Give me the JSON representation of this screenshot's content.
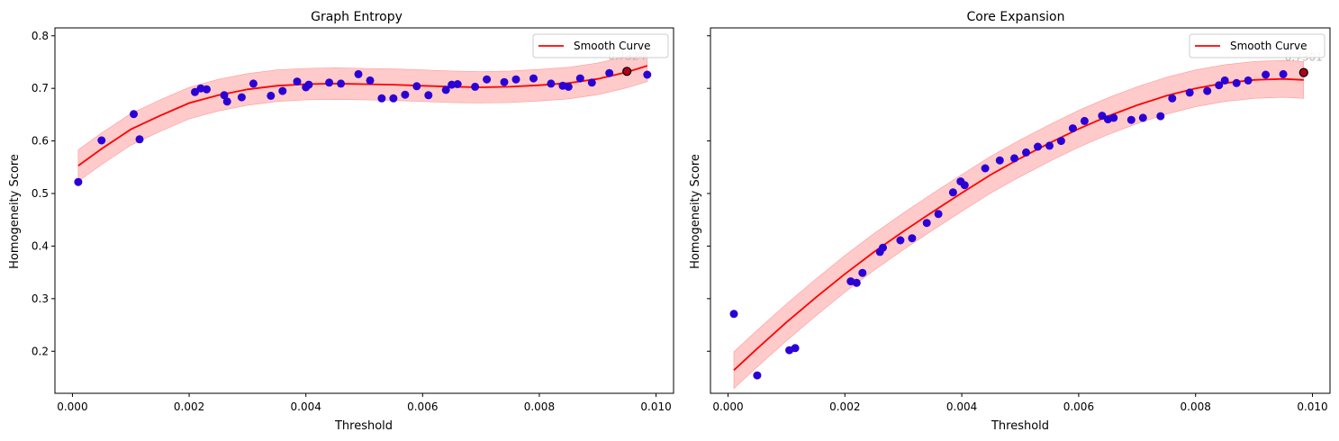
{
  "chart_data": [
    {
      "type": "scatter",
      "title": "Graph Entropy",
      "xlabel": "Threshold",
      "ylabel": "Homogeneity Score",
      "xlim": [
        -0.0003,
        0.0103
      ],
      "ylim": [
        0.12,
        0.815
      ],
      "xticks": [
        "0.000",
        "0.002",
        "0.004",
        "0.006",
        "0.008",
        "0.010"
      ],
      "xtick_values": [
        0.0,
        0.002,
        0.004,
        0.006,
        0.008,
        0.01
      ],
      "yticks": [
        "0.2",
        "0.3",
        "0.4",
        "0.5",
        "0.6",
        "0.7",
        "0.8"
      ],
      "ytick_values": [
        0.2,
        0.3,
        0.4,
        0.5,
        0.6,
        0.7,
        0.8
      ],
      "grid": false,
      "legend": {
        "position": "top-right",
        "entries": [
          "Smooth Curve"
        ]
      },
      "colors": {
        "points": "#2a00d5",
        "curve": "#ff0000",
        "band": "#ffb3b3",
        "best": "#b3001a"
      },
      "points": {
        "x": [
          0.0001,
          0.0005,
          0.00105,
          0.00115,
          0.0021,
          0.0022,
          0.0023,
          0.0026,
          0.00265,
          0.0029,
          0.0031,
          0.0034,
          0.0036,
          0.00385,
          0.004,
          0.00405,
          0.0044,
          0.0046,
          0.0049,
          0.0051,
          0.0053,
          0.0055,
          0.0057,
          0.0059,
          0.0061,
          0.0064,
          0.0065,
          0.0066,
          0.0069,
          0.0071,
          0.0074,
          0.0076,
          0.0079,
          0.0082,
          0.0084,
          0.0085,
          0.0087,
          0.0089,
          0.0092,
          0.0095,
          0.00985
        ],
        "y": [
          0.522,
          0.601,
          0.651,
          0.603,
          0.693,
          0.7,
          0.698,
          0.687,
          0.675,
          0.683,
          0.709,
          0.686,
          0.695,
          0.713,
          0.702,
          0.707,
          0.711,
          0.709,
          0.727,
          0.715,
          0.681,
          0.681,
          0.688,
          0.704,
          0.687,
          0.697,
          0.707,
          0.708,
          0.703,
          0.717,
          0.712,
          0.717,
          0.719,
          0.709,
          0.705,
          0.703,
          0.719,
          0.711,
          0.729,
          0.732,
          0.726
        ]
      },
      "curve": {
        "x": [
          0.0001,
          0.0005,
          0.001,
          0.0015,
          0.002,
          0.0025,
          0.003,
          0.0035,
          0.004,
          0.0045,
          0.005,
          0.0055,
          0.006,
          0.0065,
          0.007,
          0.0075,
          0.008,
          0.0085,
          0.009,
          0.0095,
          0.00985
        ],
        "y": [
          0.553,
          0.585,
          0.622,
          0.648,
          0.672,
          0.687,
          0.698,
          0.705,
          0.708,
          0.709,
          0.708,
          0.707,
          0.705,
          0.703,
          0.702,
          0.703,
          0.706,
          0.71,
          0.718,
          0.731,
          0.743
        ],
        "band_halfwidth": 0.03
      },
      "best": {
        "x": 0.0095,
        "y": 0.7324,
        "label": "0.7324"
      }
    },
    {
      "type": "scatter",
      "title": "Core Expansion",
      "xlabel": "Threshold",
      "ylabel": "Homogeneity Score",
      "xlim": [
        -0.0003,
        0.0103
      ],
      "ylim": [
        0.12,
        0.815
      ],
      "xticks": [
        "0.000",
        "0.002",
        "0.004",
        "0.006",
        "0.008",
        "0.010"
      ],
      "xtick_values": [
        0.0,
        0.002,
        0.004,
        0.006,
        0.008,
        0.01
      ],
      "yticks": [
        "0.2",
        "0.3",
        "0.4",
        "0.5",
        "0.6",
        "0.7",
        "0.8"
      ],
      "ytick_values": [
        0.2,
        0.3,
        0.4,
        0.5,
        0.6,
        0.7,
        0.8
      ],
      "grid": false,
      "legend": {
        "position": "top-right",
        "entries": [
          "Smooth Curve"
        ]
      },
      "colors": {
        "points": "#2a00d5",
        "curve": "#ff0000",
        "band": "#ffb3b3",
        "best": "#b3001a"
      },
      "points": {
        "x": [
          0.0001,
          0.0005,
          0.00105,
          0.00115,
          0.0021,
          0.0022,
          0.0023,
          0.0026,
          0.00265,
          0.00295,
          0.00315,
          0.0034,
          0.0036,
          0.00385,
          0.00398,
          0.00405,
          0.0044,
          0.00465,
          0.0049,
          0.0051,
          0.0053,
          0.0055,
          0.0057,
          0.0059,
          0.0061,
          0.0064,
          0.0065,
          0.0066,
          0.0069,
          0.0071,
          0.0074,
          0.0076,
          0.0079,
          0.0082,
          0.0084,
          0.0085,
          0.0087,
          0.0089,
          0.0092,
          0.0095,
          0.00985
        ],
        "y": [
          0.271,
          0.154,
          0.202,
          0.206,
          0.333,
          0.33,
          0.349,
          0.389,
          0.397,
          0.411,
          0.415,
          0.444,
          0.461,
          0.502,
          0.523,
          0.516,
          0.548,
          0.563,
          0.567,
          0.578,
          0.589,
          0.591,
          0.6,
          0.624,
          0.638,
          0.648,
          0.641,
          0.644,
          0.64,
          0.644,
          0.647,
          0.681,
          0.692,
          0.695,
          0.706,
          0.715,
          0.71,
          0.715,
          0.726,
          0.727,
          0.73
        ]
      },
      "curve": {
        "x": [
          0.0001,
          0.0005,
          0.001,
          0.0015,
          0.002,
          0.0025,
          0.003,
          0.0035,
          0.004,
          0.0045,
          0.005,
          0.0055,
          0.006,
          0.0065,
          0.007,
          0.0075,
          0.008,
          0.0085,
          0.009,
          0.0095,
          0.00985
        ],
        "y": [
          0.164,
          0.205,
          0.255,
          0.302,
          0.347,
          0.389,
          0.428,
          0.465,
          0.501,
          0.536,
          0.567,
          0.596,
          0.623,
          0.647,
          0.668,
          0.686,
          0.7,
          0.71,
          0.716,
          0.718,
          0.716
        ],
        "band_halfwidth": 0.035
      },
      "best": {
        "x": 0.00985,
        "y": 0.7301,
        "label": "0.7301"
      }
    }
  ]
}
